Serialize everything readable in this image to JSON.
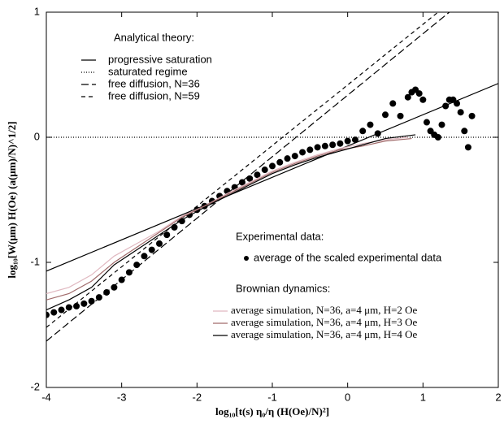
{
  "chart_data": {
    "type": "line",
    "x_label": "log₁₀[t(s) η₀/η (H(Oe)/N)²]",
    "y_label": "log₁₀[W(μm) H(Oe) (a(μm)/N)^1/2]",
    "xlim": [
      -4,
      2
    ],
    "ylim": [
      -2,
      1
    ],
    "xticks": [
      -4,
      -3,
      -2,
      -1,
      0,
      1,
      2
    ],
    "yticks": [
      -2,
      -1,
      0,
      1
    ],
    "groups": [
      {
        "title": "Analytical theory:",
        "series": [
          {
            "name": "progressive saturation",
            "color": "#000000",
            "style": "solid",
            "x": [
              -4,
              2
            ],
            "values": [
              -1.07,
              0.43
            ]
          },
          {
            "name": "saturated regime",
            "color": "#000000",
            "style": "dotted",
            "x": [
              -4,
              2
            ],
            "values": [
              0,
              0
            ]
          },
          {
            "name": "free diffusion, N=36",
            "color": "#000000",
            "style": "long-dash",
            "x": [
              -4,
              1.35
            ],
            "values": [
              -1.63,
              1
            ]
          },
          {
            "name": "free diffusion, N=59",
            "color": "#000000",
            "style": "dashed",
            "x": [
              -4,
              1.2
            ],
            "values": [
              -1.52,
              1
            ]
          }
        ]
      },
      {
        "title": "Experimental data:",
        "series": [
          {
            "name": "average of the scaled experimental data",
            "color": "#000000",
            "style": "dots",
            "x": [
              -4,
              -3.9,
              -3.8,
              -3.7,
              -3.6,
              -3.5,
              -3.4,
              -3.3,
              -3.2,
              -3.1,
              -3.0,
              -2.9,
              -2.8,
              -2.7,
              -2.6,
              -2.5,
              -2.4,
              -2.3,
              -2.2,
              -2.1,
              -2.0,
              -1.9,
              -1.8,
              -1.7,
              -1.6,
              -1.5,
              -1.4,
              -1.3,
              -1.2,
              -1.1,
              -1.0,
              -0.9,
              -0.8,
              -0.7,
              -0.6,
              -0.5,
              -0.4,
              -0.3,
              -0.2,
              -0.1,
              0.0,
              0.1,
              0.2,
              0.3,
              0.4,
              0.5,
              0.6,
              0.7,
              0.8,
              0.85,
              0.9,
              0.95,
              1.0,
              1.05,
              1.1,
              1.15,
              1.2,
              1.25,
              1.3,
              1.35,
              1.4,
              1.45,
              1.5,
              1.55,
              1.6,
              1.65
            ],
            "values": [
              -1.42,
              -1.4,
              -1.38,
              -1.36,
              -1.35,
              -1.33,
              -1.31,
              -1.28,
              -1.24,
              -1.2,
              -1.14,
              -1.08,
              -1.02,
              -0.95,
              -0.9,
              -0.85,
              -0.78,
              -0.72,
              -0.67,
              -0.62,
              -0.58,
              -0.55,
              -0.51,
              -0.47,
              -0.43,
              -0.4,
              -0.36,
              -0.33,
              -0.3,
              -0.26,
              -0.23,
              -0.2,
              -0.17,
              -0.15,
              -0.12,
              -0.1,
              -0.08,
              -0.07,
              -0.06,
              -0.05,
              -0.03,
              -0.02,
              0.05,
              0.1,
              0.03,
              0.18,
              0.27,
              0.17,
              0.32,
              0.36,
              0.38,
              0.35,
              0.3,
              0.12,
              0.05,
              0.02,
              0.0,
              0.1,
              0.25,
              0.3,
              0.3,
              0.27,
              0.2,
              0.05,
              -0.08,
              0.17
            ]
          }
        ]
      },
      {
        "title": "Brownian dynamics:",
        "series": [
          {
            "name": "average simulation, N=36, a=4 μm, H=2 Oe",
            "color": "#e0b8c0",
            "style": "solid",
            "x": [
              -4,
              -3.7,
              -3.4,
              -3.1,
              -2.8,
              -2.5,
              -2.2,
              -1.9,
              -1.6,
              -1.3,
              -1.0,
              -0.7,
              -0.4,
              -0.1,
              0.2,
              0.5,
              0.8
            ],
            "values": [
              -1.25,
              -1.2,
              -1.1,
              -0.95,
              -0.85,
              -0.75,
              -0.63,
              -0.55,
              -0.45,
              -0.36,
              -0.27,
              -0.2,
              -0.14,
              -0.09,
              -0.05,
              -0.02,
              0.0
            ]
          },
          {
            "name": "average simulation, N=36, a=4 μm, H=3 Oe",
            "color": "#a06a6a",
            "style": "solid",
            "x": [
              -4,
              -3.7,
              -3.4,
              -3.1,
              -2.8,
              -2.5,
              -2.2,
              -1.9,
              -1.6,
              -1.3,
              -1.0,
              -0.7,
              -0.4,
              -0.1,
              0.2,
              0.5,
              0.85
            ],
            "values": [
              -1.3,
              -1.25,
              -1.15,
              -1.0,
              -0.88,
              -0.76,
              -0.64,
              -0.55,
              -0.46,
              -0.37,
              -0.28,
              -0.21,
              -0.15,
              -0.1,
              -0.07,
              -0.03,
              -0.01
            ]
          },
          {
            "name": "average simulation, N=36, a=4 μm, H=4 Oe",
            "color": "#000000",
            "style": "solid",
            "x": [
              -4,
              -3.7,
              -3.4,
              -3.1,
              -2.8,
              -2.5,
              -2.2,
              -1.9,
              -1.6,
              -1.3,
              -1.0,
              -0.7,
              -0.4,
              -0.1,
              0.2,
              0.5,
              0.9
            ],
            "values": [
              -1.38,
              -1.3,
              -1.2,
              -1.02,
              -0.9,
              -0.78,
              -0.66,
              -0.56,
              -0.47,
              -0.38,
              -0.29,
              -0.22,
              -0.16,
              -0.11,
              -0.06,
              -0.01,
              0.02
            ]
          }
        ]
      }
    ]
  }
}
